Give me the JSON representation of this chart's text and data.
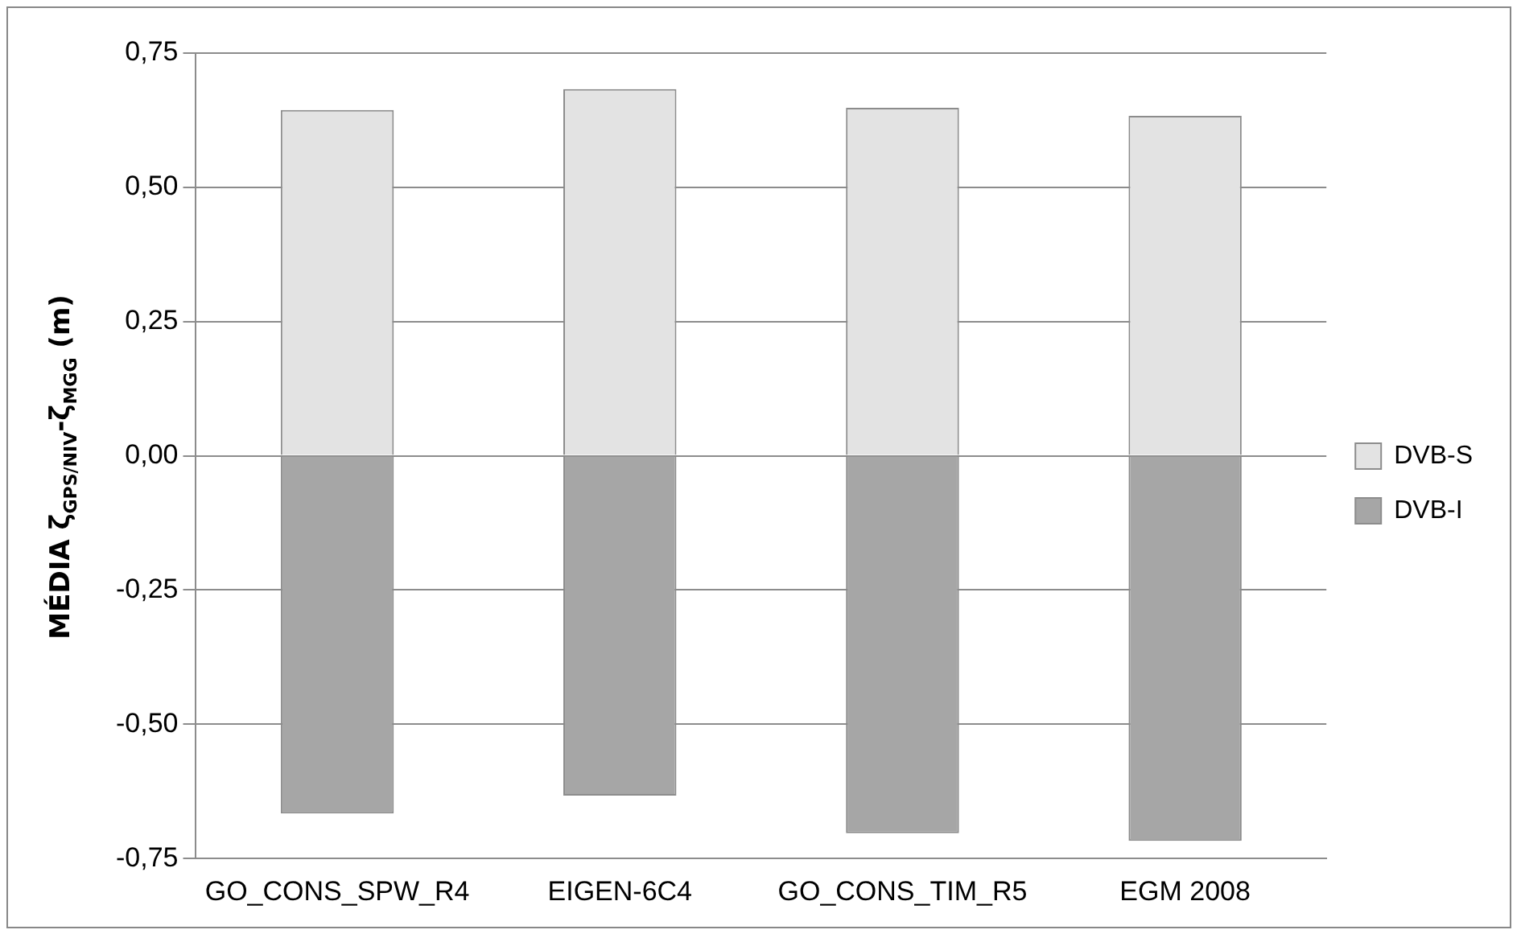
{
  "chart_data": {
    "type": "bar",
    "stacked": true,
    "ylabel": "MÉDIA  ζ$_{GPS/NIV}$-ζ$_{MGG}$ (m)",
    "categories": [
      "GO_CONS_SPW_R4",
      "EIGEN-6C4",
      "GO_CONS_TIM_R5",
      "EGM 2008"
    ],
    "series": [
      {
        "name": "DVB-S",
        "color": "#e3e3e3",
        "values": [
          0.644,
          0.683,
          0.648,
          0.633
        ]
      },
      {
        "name": "DVB-I",
        "color": "#a6a6a6",
        "values": [
          -0.666,
          -0.633,
          -0.703,
          -0.717
        ]
      }
    ],
    "ylim": [
      -0.75,
      0.75
    ],
    "yticks": [
      {
        "value": -0.75,
        "label": "-0,75"
      },
      {
        "value": -0.5,
        "label": "-0,50"
      },
      {
        "value": -0.25,
        "label": "-0,25"
      },
      {
        "value": 0,
        "label": "0,00"
      },
      {
        "value": 0.25,
        "label": "0,25"
      },
      {
        "value": 0.5,
        "label": "0,50"
      },
      {
        "value": 0.75,
        "label": "0,75"
      }
    ],
    "grid": "y",
    "legend": "right"
  }
}
